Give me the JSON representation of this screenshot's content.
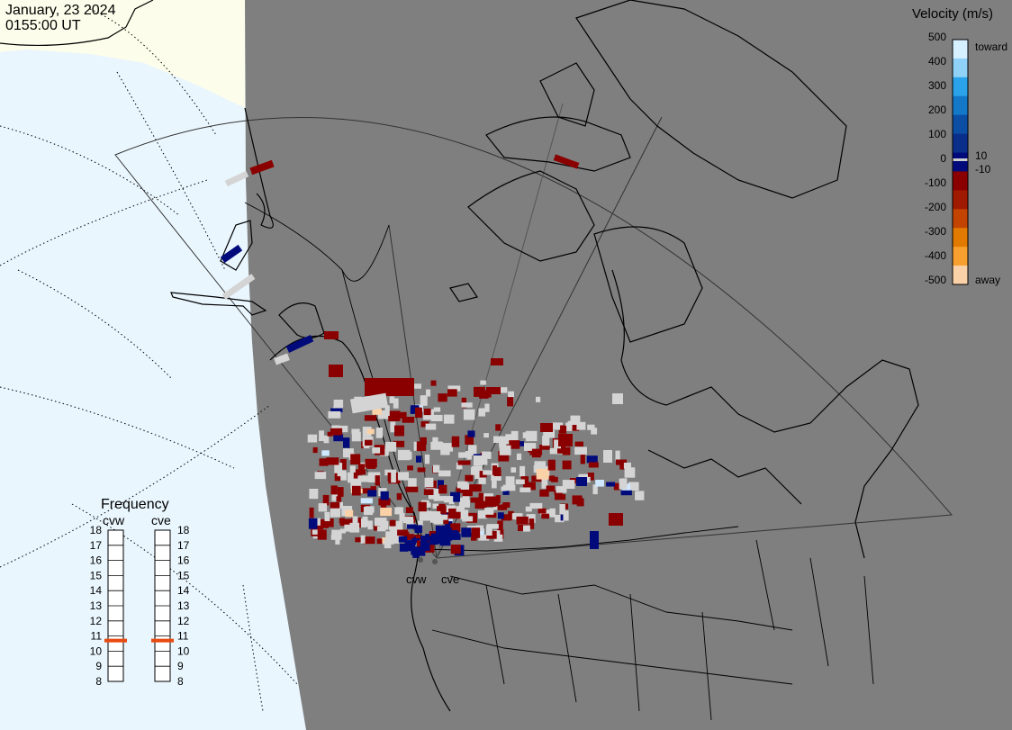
{
  "header": {
    "date": "January, 23 2024",
    "time": "0155:00 UT"
  },
  "velocity_legend": {
    "title": "Velocity (m/s)",
    "toward_label": "toward",
    "away_label": "away",
    "ticks": [
      "500",
      "400",
      "300",
      "200",
      "100",
      "0",
      "-100",
      "-200",
      "-300",
      "-400",
      "-500"
    ],
    "inner_ticks": [
      "10",
      "-10"
    ],
    "colors": [
      "#d6f0ff",
      "#8fd1f7",
      "#2aa3ea",
      "#1478c8",
      "#0b4ea4",
      "#0a2f8a",
      "#000a7a",
      "#8a0000",
      "#a01a00",
      "#c24400",
      "#e27a00",
      "#f7a030",
      "#fbd2a8"
    ]
  },
  "frequency_panel": {
    "title": "Frequency",
    "radars": [
      {
        "name": "cvw",
        "frequency": 11
      },
      {
        "name": "cve",
        "frequency": 11
      }
    ],
    "scale_labels": [
      "18",
      "17",
      "16",
      "15",
      "14",
      "13",
      "12",
      "11",
      "10",
      "9",
      "8"
    ],
    "marker_color": "#e84a10"
  },
  "radar_sites": [
    {
      "name": "cvw"
    },
    {
      "name": "cve"
    }
  ],
  "colors": {
    "night": "#7f7f7f",
    "day": "#e9f6fe",
    "twilight": "#fdfdeb",
    "ground_scatter": "#d4d4d4",
    "coastline": "#000000"
  }
}
